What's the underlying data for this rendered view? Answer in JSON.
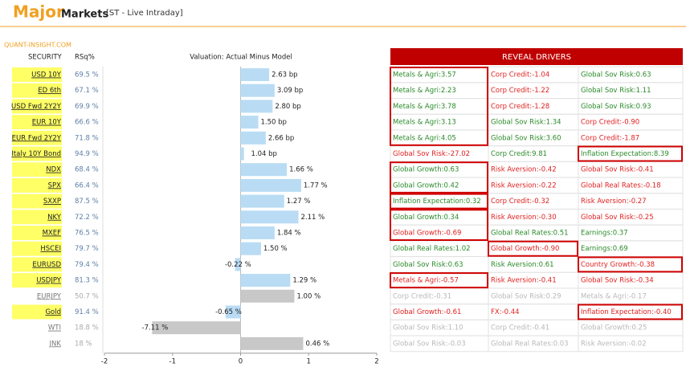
{
  "header": {
    "title": "Major",
    "subtitle": "Markets",
    "mode": "[ST - Live Intraday]",
    "site": "QUANT-INSIGHT.COM"
  },
  "table": {
    "columns": [
      "SECURITY",
      "RSq%"
    ],
    "rsq": [
      "69.5 %",
      "67.1 %",
      "69.9 %",
      "66.6 %",
      "71.8 %",
      "94.9 %",
      "68.4 %",
      "66.4 %",
      "87.5 %",
      "72.2 %",
      "76.5 %",
      "79.7 %",
      "79.4 %",
      "81.3 %",
      "50.7 %",
      "91.4 %",
      "18.8 %",
      "18 %"
    ],
    "category_colors": [
      "#ffff66",
      "#ffff66",
      "#ffff66",
      "#ffff66",
      "#ffff66",
      "#ffff66",
      "#ffff66",
      "#ffff66",
      "#ffff66",
      "#ffff66",
      "#ffff66",
      "#ffff66",
      "#ffff66",
      "#ffff66",
      "#ffffff",
      "#ffff66",
      "#ffffff",
      "#ffffff"
    ]
  },
  "chart_data": {
    "type": "bar",
    "orientation": "horizontal",
    "title": "Valuation: Actual Minus Model",
    "categories": [
      "USD 10Y",
      "ED 6th",
      "USD Fwd 2Y2Y",
      "EUR 10Y",
      "EUR Fwd 2Y2Y",
      "Italy 10Y Bond",
      "NDX",
      "SPX",
      "SXXP",
      "NKY",
      "MXEF",
      "HSCEI",
      "EURUSD",
      "USDJPY",
      "EURJPY",
      "Gold",
      "WTI",
      "JNK"
    ],
    "values": [
      0.42,
      0.5,
      0.47,
      0.26,
      0.37,
      0.05,
      0.68,
      0.89,
      0.64,
      0.85,
      0.5,
      0.3,
      -0.08,
      0.73,
      0.79,
      -0.22,
      -1.3,
      0.92
    ],
    "bar_labels": [
      "2.63 bp",
      "3.09 bp",
      "2.80 bp",
      "1.50 bp",
      "2.66 bp",
      "1.04 bp",
      "1.66 %",
      "1.77 %",
      "1.27 %",
      "2.11 %",
      "1.84 %",
      "1.50 %",
      "-0.22 %",
      "1.29 %",
      "1.00 %",
      "-0.65 %",
      "-7.11 %",
      "0.46 %"
    ],
    "colors": [
      "#b9dcf4",
      "#b9dcf4",
      "#b9dcf4",
      "#b9dcf4",
      "#b9dcf4",
      "#b9dcf4",
      "#b9dcf4",
      "#b9dcf4",
      "#b9dcf4",
      "#b9dcf4",
      "#b9dcf4",
      "#b9dcf4",
      "#b9dcf4",
      "#b9dcf4",
      "#c8c8c8",
      "#b9dcf4",
      "#c8c8c8",
      "#c8c8c8"
    ],
    "xlim": [
      -2,
      2
    ],
    "xticks": [
      -2,
      -1,
      0,
      1,
      2
    ]
  },
  "drivers": {
    "title": "REVEAL DRIVERS",
    "rows": [
      [
        {
          "text": "Metals & Agri:3.57",
          "color": "#2a8a2a"
        },
        {
          "text": "Corp Credit:-1.04",
          "color": "#e02020"
        },
        {
          "text": "Global Sov Risk:0.63",
          "color": "#2a8a2a"
        }
      ],
      [
        {
          "text": "Metals & Agri:2.23",
          "color": "#2a8a2a"
        },
        {
          "text": "Corp Credit:-1.22",
          "color": "#e02020"
        },
        {
          "text": "Global Sov Risk:1.11",
          "color": "#2a8a2a"
        }
      ],
      [
        {
          "text": "Metals & Agri:3.78",
          "color": "#2a8a2a"
        },
        {
          "text": "Corp Credit:-1.28",
          "color": "#e02020"
        },
        {
          "text": "Global Sov Risk:0.93",
          "color": "#2a8a2a"
        }
      ],
      [
        {
          "text": "Metals & Agri:3.13",
          "color": "#2a8a2a"
        },
        {
          "text": "Global Sov Risk:1.34",
          "color": "#2a8a2a"
        },
        {
          "text": "Corp Credit:-0.90",
          "color": "#e02020"
        }
      ],
      [
        {
          "text": "Metals & Agri:4.05",
          "color": "#2a8a2a"
        },
        {
          "text": "Global Sov Risk:3.60",
          "color": "#2a8a2a"
        },
        {
          "text": "Corp Credit:-1.87",
          "color": "#e02020"
        }
      ],
      [
        {
          "text": "Global Sov Risk:-27.02",
          "color": "#e02020"
        },
        {
          "text": "Corp Credit:9.81",
          "color": "#2a8a2a"
        },
        {
          "text": "Inflation Expectation:8.39",
          "color": "#2a8a2a"
        }
      ],
      [
        {
          "text": "Global Growth:0.63",
          "color": "#2a8a2a"
        },
        {
          "text": "Risk Aversion:-0.42",
          "color": "#e02020"
        },
        {
          "text": "Global Sov Risk:-0.41",
          "color": "#e02020"
        }
      ],
      [
        {
          "text": "Global Growth:0.42",
          "color": "#2a8a2a"
        },
        {
          "text": "Risk Aversion:-0.22",
          "color": "#e02020"
        },
        {
          "text": "Global Real Rates:-0.18",
          "color": "#e02020"
        }
      ],
      [
        {
          "text": "Inflation Expectation:0.32",
          "color": "#2a8a2a"
        },
        {
          "text": "Corp Credit:-0.32",
          "color": "#e02020"
        },
        {
          "text": "Risk Aversion:-0.27",
          "color": "#e02020"
        }
      ],
      [
        {
          "text": "Global Growth:0.34",
          "color": "#2a8a2a"
        },
        {
          "text": "Risk Aversion:-0.30",
          "color": "#e02020"
        },
        {
          "text": "Global Sov Risk:-0.25",
          "color": "#e02020"
        }
      ],
      [
        {
          "text": "Global Growth:-0.69",
          "color": "#e02020"
        },
        {
          "text": "Global Real Rates:0.51",
          "color": "#2a8a2a"
        },
        {
          "text": "Earnings:0.37",
          "color": "#2a8a2a"
        }
      ],
      [
        {
          "text": "Global Real Rates:1.02",
          "color": "#2a8a2a"
        },
        {
          "text": "Global Growth:-0.90",
          "color": "#e02020"
        },
        {
          "text": "Earnings:0.69",
          "color": "#2a8a2a"
        }
      ],
      [
        {
          "text": "Global Sov Risk:0.63",
          "color": "#2a8a2a"
        },
        {
          "text": "Risk Aversion:0.61",
          "color": "#2a8a2a"
        },
        {
          "text": "Country Growth:-0.38",
          "color": "#e02020"
        }
      ],
      [
        {
          "text": "Metals & Agri:-0.57",
          "color": "#e02020"
        },
        {
          "text": "Risk Aversion:-0.41",
          "color": "#e02020"
        },
        {
          "text": "Global Sov Risk:-0.34",
          "color": "#e02020"
        }
      ],
      [
        {
          "text": "Corp Credit:-0.31",
          "color": "#b8b8b8"
        },
        {
          "text": "Global Sov Risk:0.29",
          "color": "#b8b8b8"
        },
        {
          "text": "Metals & Agri:-0.17",
          "color": "#b8b8b8"
        }
      ],
      [
        {
          "text": "Global Growth:-0.61",
          "color": "#e02020"
        },
        {
          "text": "FX:-0.44",
          "color": "#e02020"
        },
        {
          "text": "Inflation Expectation:-0.40",
          "color": "#e02020"
        }
      ],
      [
        {
          "text": "Global Sov Risk:1.10",
          "color": "#b8b8b8"
        },
        {
          "text": "Corp Credit:-0.41",
          "color": "#b8b8b8"
        },
        {
          "text": "Global Growth:0.25",
          "color": "#b8b8b8"
        }
      ],
      [
        {
          "text": "Global Sov Risk:-0.03",
          "color": "#b8b8b8"
        },
        {
          "text": "Global Real Rates:0.03",
          "color": "#b8b8b8"
        },
        {
          "text": "Risk Aversion:-0.02",
          "color": "#b8b8b8"
        }
      ]
    ]
  }
}
